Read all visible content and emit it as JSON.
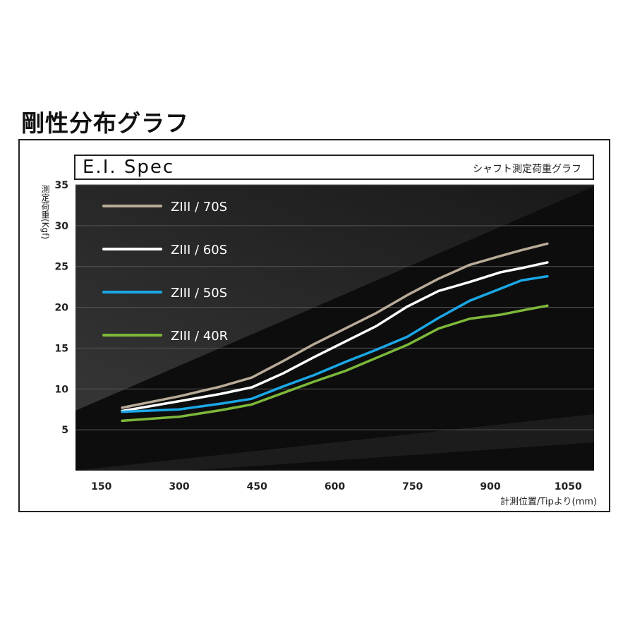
{
  "header": {
    "title": "剛性分布グラフ"
  },
  "panel": {
    "spec_title": "E.I. Spec",
    "spec_subtitle": "シャフト測定荷重グラフ"
  },
  "colors": {
    "plot_bg": "#0d0d0d",
    "band": "#3a3a3a",
    "grid": "#555555"
  },
  "chart_data": {
    "type": "line",
    "title": "",
    "xlabel": "計測位置/Tipより(mm)",
    "ylabel": "測定荷重(Kgf)",
    "xlim": [
      100,
      1100
    ],
    "ylim": [
      0,
      35
    ],
    "xticks": [
      150,
      300,
      450,
      600,
      750,
      900,
      1050
    ],
    "yticks": [
      5,
      10,
      15,
      20,
      25,
      30,
      35
    ],
    "grid": true,
    "legend_position": "top-left",
    "x": [
      190,
      300,
      380,
      440,
      500,
      560,
      620,
      680,
      740,
      800,
      860,
      920,
      960,
      1010
    ],
    "series": [
      {
        "name": "ZIII / 70S",
        "color": "#b8ab98",
        "values": [
          7.7,
          9.1,
          10.3,
          11.4,
          13.4,
          15.5,
          17.4,
          19.3,
          21.5,
          23.5,
          25.2,
          26.3,
          27.0,
          27.8
        ]
      },
      {
        "name": "ZIII / 60S",
        "color": "#ffffff",
        "values": [
          7.3,
          8.5,
          9.4,
          10.2,
          11.9,
          13.9,
          15.8,
          17.7,
          20.1,
          22.0,
          23.1,
          24.3,
          24.8,
          25.5
        ]
      },
      {
        "name": "ZIII / 50S",
        "color": "#1aa7e6",
        "values": [
          7.2,
          7.5,
          8.2,
          8.8,
          10.3,
          11.7,
          13.3,
          14.8,
          16.4,
          18.7,
          20.8,
          22.3,
          23.3,
          23.8
        ]
      },
      {
        "name": "ZIII / 40R",
        "color": "#7db83a",
        "values": [
          6.1,
          6.6,
          7.4,
          8.1,
          9.5,
          10.9,
          12.2,
          13.8,
          15.4,
          17.4,
          18.6,
          19.1,
          19.6,
          20.2
        ]
      }
    ]
  }
}
